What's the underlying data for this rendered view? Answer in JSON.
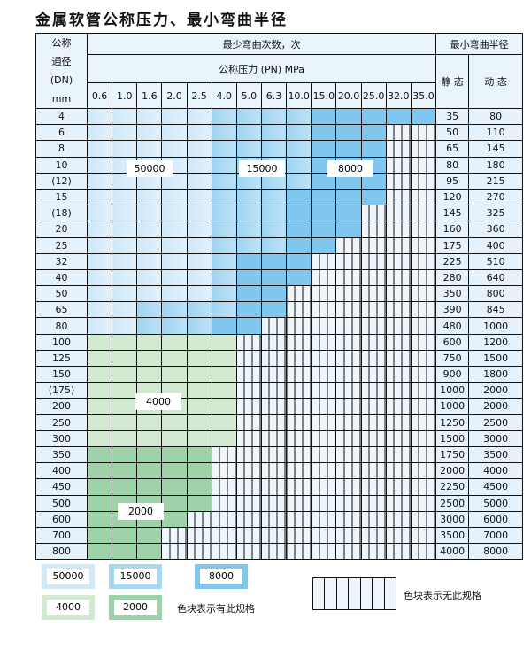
{
  "title": "金属软管公称压力、最小弯曲半径",
  "header": {
    "dn_label_lines": [
      "公称",
      "通径",
      "(DN)",
      "mm"
    ],
    "cycles_label": "最少弯曲次数，次",
    "pressure_label": "公称压力 (PN) MPa",
    "radius_label": "最小弯曲半径",
    "static_label": "静 态",
    "dynamic_label": "动 态",
    "pressures": [
      "0.6",
      "1.0",
      "1.6",
      "2.0",
      "2.5",
      "4.0",
      "5.0",
      "6.3",
      "10.0",
      "15.0",
      "20.0",
      "25.0",
      "32.0",
      "35.0"
    ]
  },
  "cell_legend": {
    "A": "50000",
    "B": "15000",
    "C": "8000",
    "D": "4000",
    "E": "2000",
    "X": "no specification"
  },
  "colors": {
    "A": "#cfe7f7",
    "B": "#a9d8f3",
    "C": "#7fc7ee",
    "D": "#d4e9d2",
    "E": "#9ed2a9",
    "X": "#eef5fb"
  },
  "rows": [
    {
      "dn": "4",
      "static": "35",
      "dynamic": "80",
      "cells": "AAAAABBBBCCCCC"
    },
    {
      "dn": "6",
      "static": "50",
      "dynamic": "110",
      "cells": "AAAAABBBBCCCXX"
    },
    {
      "dn": "8",
      "static": "65",
      "dynamic": "145",
      "cells": "AAAAABBBBCCCXX"
    },
    {
      "dn": "10",
      "static": "80",
      "dynamic": "180",
      "cells": "AAAAABBBBCCCXX"
    },
    {
      "dn": "(12)",
      "static": "95",
      "dynamic": "215",
      "cells": "AAAAABBBBCCCXX"
    },
    {
      "dn": "15",
      "static": "120",
      "dynamic": "270",
      "cells": "AAAAABBBCCCCXX"
    },
    {
      "dn": "(18)",
      "static": "145",
      "dynamic": "325",
      "cells": "AAAAABBBCCCXXX"
    },
    {
      "dn": "20",
      "static": "160",
      "dynamic": "360",
      "cells": "AAAAABBBCCCXXX"
    },
    {
      "dn": "25",
      "static": "175",
      "dynamic": "400",
      "cells": "AAAAABBBCCXXXX"
    },
    {
      "dn": "32",
      "static": "225",
      "dynamic": "510",
      "cells": "AAAAABCCCXXXXX"
    },
    {
      "dn": "40",
      "static": "280",
      "dynamic": "640",
      "cells": "AAAAABCCCXXXXX"
    },
    {
      "dn": "50",
      "static": "350",
      "dynamic": "800",
      "cells": "AAAAABCCXXXXXX"
    },
    {
      "dn": "65",
      "static": "390",
      "dynamic": "845",
      "cells": "AABBBBCCXXXXXX"
    },
    {
      "dn": "80",
      "static": "480",
      "dynamic": "1000",
      "cells": "AABBBCCXXXXXXX"
    },
    {
      "dn": "100",
      "static": "600",
      "dynamic": "1200",
      "cells": "DDDDDDXXXXXXXX"
    },
    {
      "dn": "125",
      "static": "750",
      "dynamic": "1500",
      "cells": "DDDDDDXXXXXXXX"
    },
    {
      "dn": "150",
      "static": "900",
      "dynamic": "1800",
      "cells": "DDDDDDXXXXXXXX"
    },
    {
      "dn": "(175)",
      "static": "1000",
      "dynamic": "2000",
      "cells": "DDDDDDXXXXXXXX"
    },
    {
      "dn": "200",
      "static": "1000",
      "dynamic": "2000",
      "cells": "DDDDDDXXXXXXXX"
    },
    {
      "dn": "250",
      "static": "1250",
      "dynamic": "2500",
      "cells": "DDDDDDXXXXXXXX"
    },
    {
      "dn": "300",
      "static": "1500",
      "dynamic": "3000",
      "cells": "DDDDDDXXXXXXXX"
    },
    {
      "dn": "350",
      "static": "1750",
      "dynamic": "3500",
      "cells": "EEEEEXXXXXXXXX"
    },
    {
      "dn": "400",
      "static": "2000",
      "dynamic": "4000",
      "cells": "EEEEEXXXXXXXXX"
    },
    {
      "dn": "450",
      "static": "2250",
      "dynamic": "4500",
      "cells": "EEEEEXXXXXXXXX"
    },
    {
      "dn": "500",
      "static": "2500",
      "dynamic": "5000",
      "cells": "EEEEEXXXXXXXXX"
    },
    {
      "dn": "600",
      "static": "3000",
      "dynamic": "6000",
      "cells": "EEEEXXXXXXXXXX"
    },
    {
      "dn": "700",
      "static": "3500",
      "dynamic": "7000",
      "cells": "EEEXXXXXXXXXXX"
    },
    {
      "dn": "800",
      "static": "4000",
      "dynamic": "8000",
      "cells": "EEEXXXXXXXXXXX"
    }
  ],
  "region_labels": {
    "a": "50000",
    "b": "15000",
    "c": "8000",
    "d": "4000",
    "e": "2000"
  },
  "legend": {
    "items": [
      "50000",
      "15000",
      "8000",
      "4000",
      "2000"
    ],
    "has_spec": "色块表示有此规格",
    "no_spec": "色块表示无此规格"
  }
}
